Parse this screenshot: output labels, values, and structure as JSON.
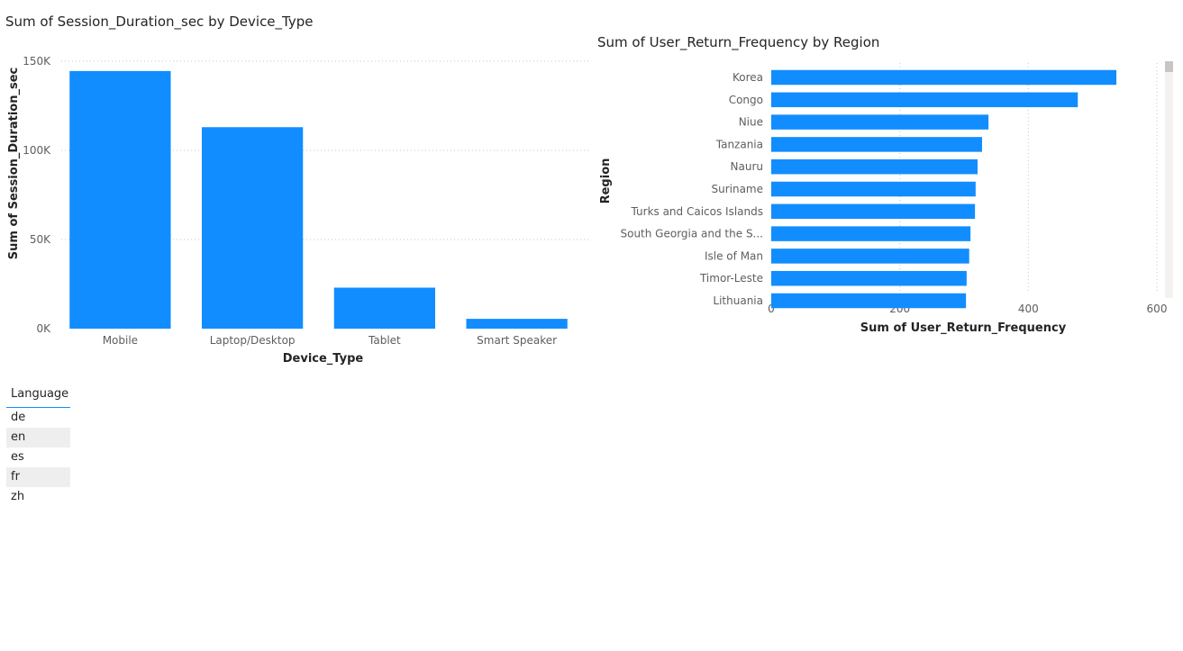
{
  "colors": {
    "bar": "#118dff",
    "grid": "#c8c6c4"
  },
  "chart1": {
    "title": "Sum of Session_Duration_sec by Device_Type",
    "chart_data": {
      "type": "bar",
      "title": "Sum of Session_Duration_sec by Device_Type",
      "xlabel": "Device_Type",
      "ylabel": "Sum of Session_Duration_sec",
      "categories": [
        "Mobile",
        "Laptop/Desktop",
        "Tablet",
        "Smart Speaker"
      ],
      "values": [
        144500,
        113000,
        23000,
        5500
      ],
      "ylim": [
        0,
        150000
      ],
      "yticks": [
        {
          "value": 0,
          "label": "0K"
        },
        {
          "value": 50000,
          "label": "50K"
        },
        {
          "value": 100000,
          "label": "100K"
        },
        {
          "value": 150000,
          "label": "150K"
        }
      ],
      "grid": true
    }
  },
  "chart2": {
    "title": "Sum of User_Return_Frequency by Region",
    "chart_data": {
      "type": "bar",
      "orientation": "horizontal",
      "title": "Sum of User_Return_Frequency by Region",
      "xlabel": "Sum of User_Return_Frequency",
      "ylabel": "Region",
      "categories": [
        "Korea",
        "Congo",
        "Niue",
        "Tanzania",
        "Nauru",
        "Suriname",
        "Turks and Caicos Islands",
        "South Georgia and the S...",
        "Isle of Man",
        "Timor-Leste",
        "Lithuania"
      ],
      "values": [
        537,
        477,
        338,
        328,
        321,
        318,
        317,
        310,
        308,
        304,
        303
      ],
      "xlim": [
        0,
        600
      ],
      "xticks": [
        {
          "value": 0,
          "label": "0"
        },
        {
          "value": 200,
          "label": "200"
        },
        {
          "value": 400,
          "label": "400"
        },
        {
          "value": 600,
          "label": "600"
        }
      ],
      "grid": true
    }
  },
  "slicer": {
    "header": "Language",
    "items": [
      "de",
      "en",
      "es",
      "fr",
      "zh"
    ]
  }
}
